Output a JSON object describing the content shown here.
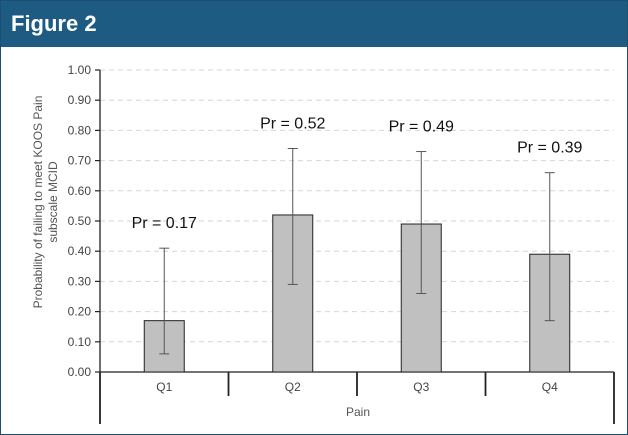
{
  "figure_title": "Figure 2",
  "chart_data": {
    "type": "bar",
    "categories": [
      "Q1",
      "Q2",
      "Q3",
      "Q4"
    ],
    "values": [
      0.17,
      0.52,
      0.49,
      0.39
    ],
    "error_lower": [
      0.06,
      0.29,
      0.26,
      0.17
    ],
    "error_upper": [
      0.41,
      0.74,
      0.73,
      0.66
    ],
    "data_labels": [
      "Pr = 0.17",
      "Pr = 0.52",
      "Pr = 0.49",
      "Pr = 0.39"
    ],
    "title": "",
    "xlabel": "Pain",
    "ylabel_line1": "Probability of failing to meet KOOS Pain",
    "ylabel_line2": "subscale MCID",
    "ylim": [
      0,
      1
    ],
    "yticks": [
      "0.00",
      "0.10",
      "0.20",
      "0.30",
      "0.40",
      "0.50",
      "0.60",
      "0.70",
      "0.80",
      "0.90",
      "1.00"
    ],
    "grid": true,
    "bar_color": "#c0c0c0"
  }
}
